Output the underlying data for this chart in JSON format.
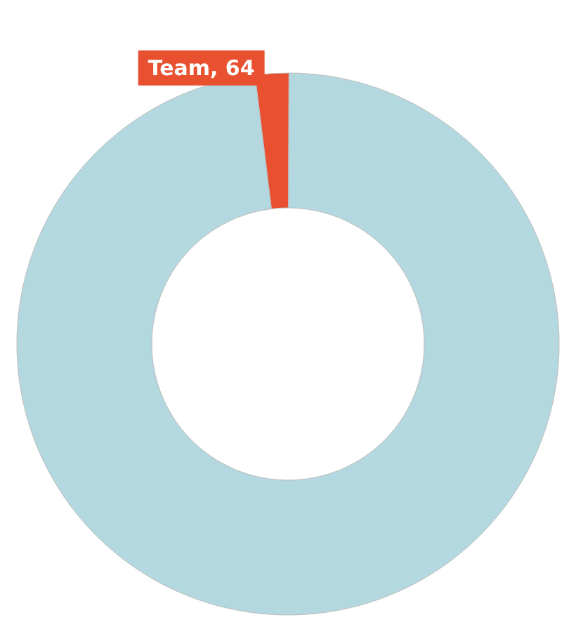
{
  "chart_data": {
    "type": "donut",
    "categories": [
      "Team, 64",
      null
    ],
    "values": [
      2,
      98
    ],
    "colors": [
      "#e8502f",
      "#b4d8e0"
    ],
    "legend": false
  }
}
